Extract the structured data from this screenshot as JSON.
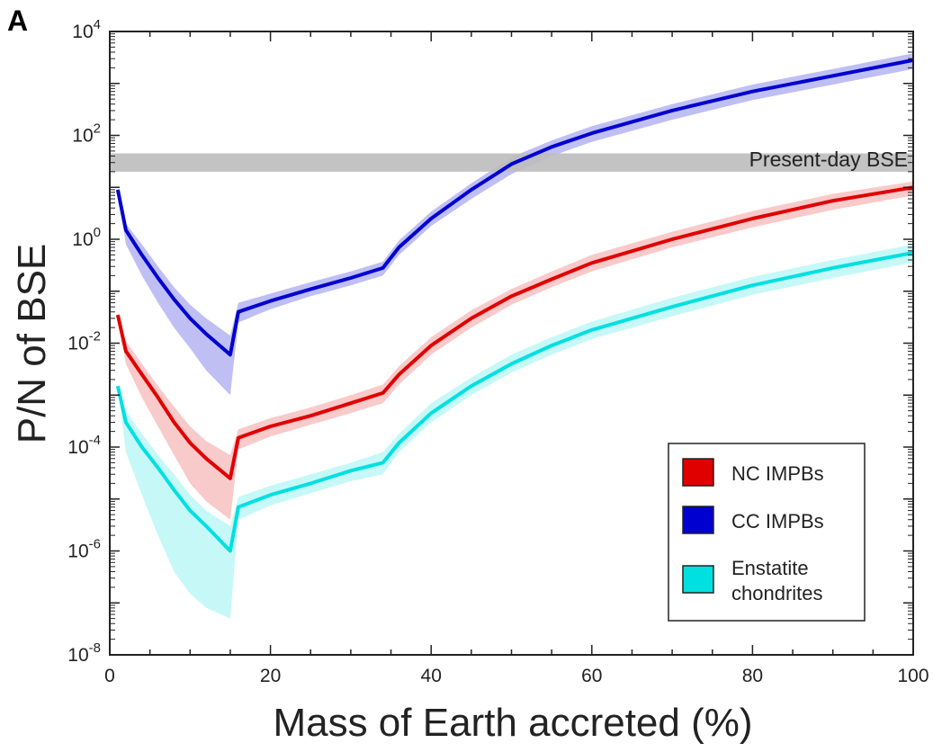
{
  "panel_label": "A",
  "chart_data": {
    "type": "line",
    "xlabel": "Mass of Earth accreted (%)",
    "ylabel": "P/N of BSE",
    "xlim": [
      0,
      100
    ],
    "ylim": [
      1e-08,
      10000.0
    ],
    "yscale": "log",
    "xticks": [
      0,
      20,
      40,
      60,
      80,
      100
    ],
    "yticks": [
      {
        "base": "10",
        "exp": "-8",
        "value": 1e-08
      },
      {
        "base": "10",
        "exp": "-6",
        "value": 1e-06
      },
      {
        "base": "10",
        "exp": "-4",
        "value": 0.0001
      },
      {
        "base": "10",
        "exp": "-2",
        "value": 0.01
      },
      {
        "base": "10",
        "exp": "0",
        "value": 1
      },
      {
        "base": "10",
        "exp": "2",
        "value": 100
      },
      {
        "base": "10",
        "exp": "4",
        "value": 10000
      }
    ],
    "grid": false,
    "legend_position": "bottom-right",
    "reference_band": {
      "label": "Present-day BSE",
      "y_low": 20,
      "y_high": 45,
      "color": "#bdbdbd"
    },
    "series": [
      {
        "name": "CC IMPBs",
        "color": "#0000d0",
        "band_color": "#aaaaf0",
        "x": [
          1,
          2,
          4,
          6,
          8,
          10,
          12,
          15,
          16,
          20,
          25,
          30,
          34,
          36,
          40,
          45,
          50,
          55,
          60,
          70,
          80,
          90,
          100
        ],
        "y": [
          9,
          1.5,
          0.5,
          0.18,
          0.07,
          0.03,
          0.015,
          0.006,
          0.04,
          0.065,
          0.11,
          0.18,
          0.28,
          0.7,
          2.5,
          9,
          28,
          60,
          110,
          300,
          700,
          1400,
          2800
        ],
        "y_low": [
          9,
          0.8,
          0.2,
          0.06,
          0.02,
          0.008,
          0.003,
          0.001,
          0.025,
          0.045,
          0.08,
          0.13,
          0.2,
          0.5,
          1.8,
          6,
          18,
          40,
          75,
          200,
          480,
          950,
          1900
        ],
        "y_high": [
          9,
          2.0,
          0.8,
          0.3,
          0.12,
          0.055,
          0.03,
          0.014,
          0.06,
          0.09,
          0.15,
          0.24,
          0.37,
          0.95,
          3.4,
          12,
          38,
          80,
          150,
          400,
          950,
          1900,
          3800
        ]
      },
      {
        "name": "NC IMPBs",
        "color": "#e00000",
        "band_color": "#f5b8b8",
        "x": [
          1,
          2,
          4,
          6,
          8,
          10,
          12,
          15,
          16,
          20,
          25,
          30,
          34,
          36,
          40,
          45,
          50,
          55,
          60,
          70,
          80,
          90,
          100
        ],
        "y": [
          0.035,
          0.007,
          0.0025,
          0.0009,
          0.0003,
          0.00012,
          6e-05,
          2.5e-05,
          0.00015,
          0.00025,
          0.0004,
          0.0007,
          0.0011,
          0.0025,
          0.009,
          0.03,
          0.08,
          0.17,
          0.35,
          1.0,
          2.5,
          5.5,
          10
        ],
        "y_low": [
          0.035,
          0.004,
          0.0009,
          0.00025,
          7e-05,
          2e-05,
          9e-06,
          4e-06,
          9e-05,
          0.00016,
          0.00027,
          0.00045,
          0.0007,
          0.0016,
          0.006,
          0.02,
          0.055,
          0.12,
          0.24,
          0.7,
          1.7,
          3.7,
          7
        ],
        "y_high": [
          0.035,
          0.011,
          0.004,
          0.0015,
          0.0006,
          0.00025,
          0.00013,
          7e-05,
          0.00022,
          0.00036,
          0.00058,
          0.001,
          0.0016,
          0.0036,
          0.013,
          0.043,
          0.11,
          0.24,
          0.5,
          1.4,
          3.5,
          7.5,
          13
        ]
      },
      {
        "name": "Enstatite chondrites",
        "color": "#00e0e0",
        "band_color": "#b4f6f6",
        "x": [
          1,
          2,
          4,
          6,
          8,
          10,
          12,
          15,
          16,
          20,
          25,
          30,
          34,
          36,
          40,
          45,
          50,
          55,
          60,
          70,
          80,
          90,
          100
        ],
        "y": [
          0.0015,
          0.0003,
          0.0001,
          4e-05,
          1.5e-05,
          6e-06,
          3e-06,
          1e-06,
          7e-06,
          1.2e-05,
          2e-05,
          3.5e-05,
          5e-05,
          0.00012,
          0.00045,
          0.0015,
          0.004,
          0.009,
          0.018,
          0.05,
          0.13,
          0.28,
          0.55
        ],
        "y_low": [
          0.0015,
          8e-05,
          1.2e-05,
          2e-06,
          4e-07,
          1.5e-07,
          8e-08,
          5e-08,
          4e-06,
          7.5e-06,
          1.3e-05,
          2.2e-05,
          3e-05,
          8e-05,
          0.0003,
          0.001,
          0.0027,
          0.006,
          0.012,
          0.033,
          0.085,
          0.18,
          0.36
        ],
        "y_high": [
          0.0015,
          0.0005,
          0.00018,
          7e-05,
          3e-05,
          1.2e-05,
          6e-06,
          3e-06,
          1.1e-05,
          1.8e-05,
          3e-05,
          5e-05,
          8e-05,
          0.00018,
          0.0007,
          0.0022,
          0.006,
          0.013,
          0.026,
          0.075,
          0.19,
          0.4,
          0.8
        ]
      }
    ],
    "legend_entries": [
      {
        "lines": [
          "NC IMPBs"
        ],
        "color": "#e00000"
      },
      {
        "lines": [
          "CC IMPBs"
        ],
        "color": "#0000d0"
      },
      {
        "lines": [
          "Enstatite",
          "chondrites"
        ],
        "color": "#00e0e0"
      }
    ]
  }
}
